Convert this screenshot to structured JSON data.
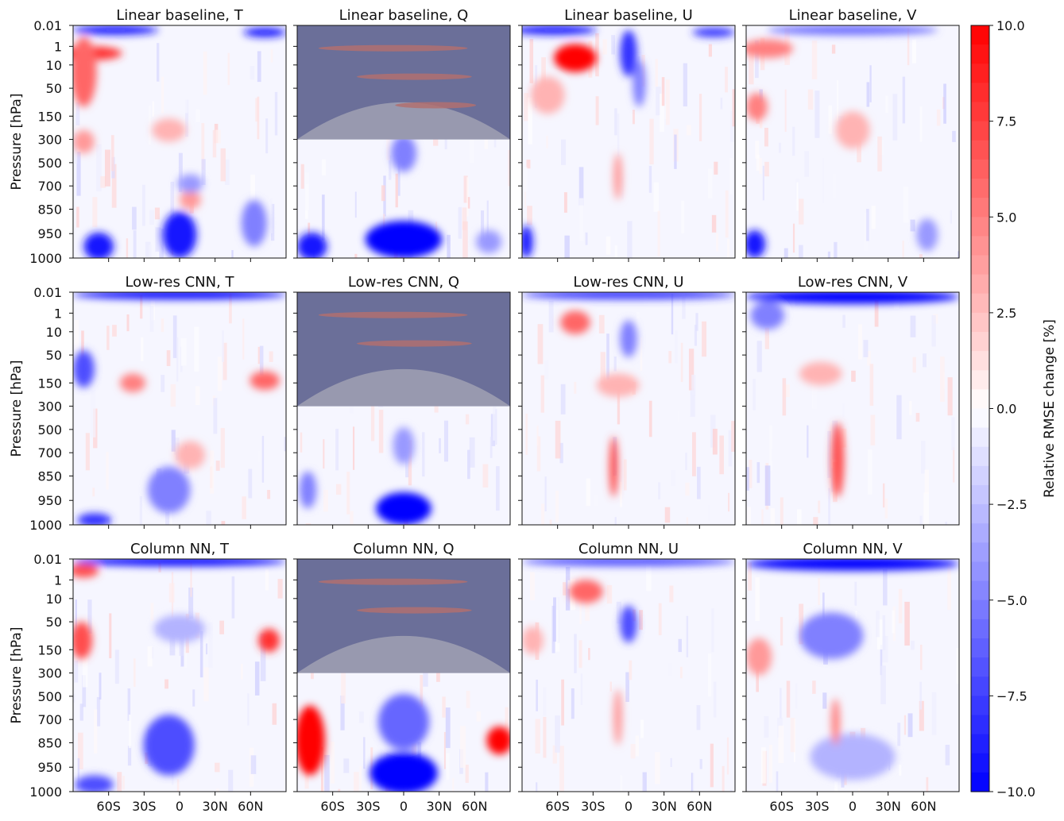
{
  "figure": {
    "ylabel": "Pressure [hPa]",
    "colorbar_label": "Relative RMSE change [%]",
    "colorbar_ticks": [
      "10.0",
      "7.5",
      "5.0",
      "2.5",
      "0.0",
      "−2.5",
      "−5.0",
      "−7.5",
      "−10.0"
    ],
    "colors": {
      "positive": "#ff0000",
      "neutral": "#ffffff",
      "negative": "#0000ff",
      "masked": "#6b6f99"
    }
  },
  "chart_data": {
    "type": "heatmap",
    "rows": [
      "Linear baseline",
      "Low-res CNN",
      "Column NN"
    ],
    "variables": [
      "T",
      "Q",
      "U",
      "V"
    ],
    "panel_titles": [
      "Linear baseline, T",
      "Linear baseline, Q",
      "Linear baseline, U",
      "Linear baseline, V",
      "Low-res CNN, T",
      "Low-res CNN, Q",
      "Low-res CNN, U",
      "Low-res CNN, V",
      "Column NN, T",
      "Column NN, Q",
      "Column NN, U",
      "Column NN, V"
    ],
    "y_ticks": [
      "0.01",
      "1",
      "10",
      "50",
      "150",
      "300",
      "500",
      "700",
      "850",
      "950",
      "1000"
    ],
    "x_ticks": [
      "60S",
      "30S",
      "0",
      "30N",
      "60N"
    ],
    "x_tick_values": [
      -60,
      -30,
      0,
      30,
      60
    ],
    "xlim": [
      -90,
      90
    ],
    "colorbar_range": [
      -10,
      10
    ],
    "q_masked_above_hPa": 300,
    "ylabel": "Pressure [hPa]",
    "colorbar_label": "Relative RMSE change [%]"
  }
}
